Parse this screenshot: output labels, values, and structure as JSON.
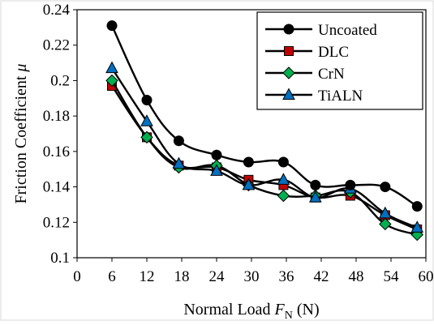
{
  "chart_data": {
    "type": "line",
    "xlabel": {
      "prefix": "Normal Load ",
      "var": "F",
      "sub": "N",
      "suffix": " (N)"
    },
    "ylabel": {
      "prefix": "Friction Coefficient ",
      "var": "μ"
    },
    "xlim": [
      0,
      60
    ],
    "ylim": [
      0.1,
      0.24
    ],
    "xticks": [
      0,
      6,
      12,
      18,
      24,
      30,
      36,
      42,
      48,
      54,
      60
    ],
    "xtick_labels": [
      "0",
      "6",
      "12",
      "18",
      "24",
      "30",
      "36",
      "42",
      "48",
      "54",
      "60"
    ],
    "yticks": [
      0.1,
      0.12,
      0.14,
      0.16,
      0.18,
      0.2,
      0.22,
      0.24
    ],
    "ytick_labels": [
      "0.1",
      "0.12",
      "0.14",
      "0.16",
      "0.18",
      "0.2",
      "0.22",
      "0.24"
    ],
    "grid": false,
    "legend_position": "top-right",
    "x": [
      6,
      12,
      17.5,
      24,
      29.5,
      35.5,
      41,
      47,
      53,
      58.5
    ],
    "series": [
      {
        "name": "Uncoated",
        "marker": "circle",
        "color": "#000000",
        "values": [
          0.231,
          0.189,
          0.166,
          0.158,
          0.154,
          0.154,
          0.141,
          0.141,
          0.14,
          0.129
        ]
      },
      {
        "name": "DLC",
        "marker": "square",
        "color": "#c00000",
        "values": [
          0.197,
          0.168,
          0.152,
          0.151,
          0.144,
          0.141,
          0.134,
          0.135,
          0.124,
          0.116
        ]
      },
      {
        "name": "CrN",
        "marker": "diamond",
        "color": "#00b050",
        "values": [
          0.2,
          0.168,
          0.151,
          0.152,
          0.141,
          0.135,
          0.135,
          0.137,
          0.119,
          0.113
        ]
      },
      {
        "name": "TiALN",
        "marker": "triangle",
        "color": "#0070c0",
        "values": [
          0.207,
          0.177,
          0.153,
          0.149,
          0.141,
          0.144,
          0.134,
          0.139,
          0.125,
          0.117
        ]
      }
    ]
  }
}
